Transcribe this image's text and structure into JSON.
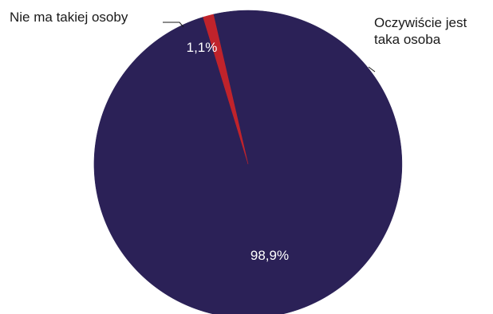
{
  "chart_data": {
    "type": "pie",
    "title": "",
    "start_angle_deg": -17.0,
    "direction": "counterclockwise",
    "slices": [
      {
        "label": "Oczywiście jest taka osoba",
        "label_lines": [
          "Oczywiście jest",
          "taka osoba"
        ],
        "value": 98.9,
        "value_label": "98,9%",
        "color": "#2b2157"
      },
      {
        "label": "Nie ma takiej osoby",
        "label_lines": [
          "Nie ma takiej osoby"
        ],
        "value": 1.1,
        "value_label": "1,1%",
        "color": "#c0232b"
      }
    ],
    "legend": "none",
    "grid": false
  }
}
